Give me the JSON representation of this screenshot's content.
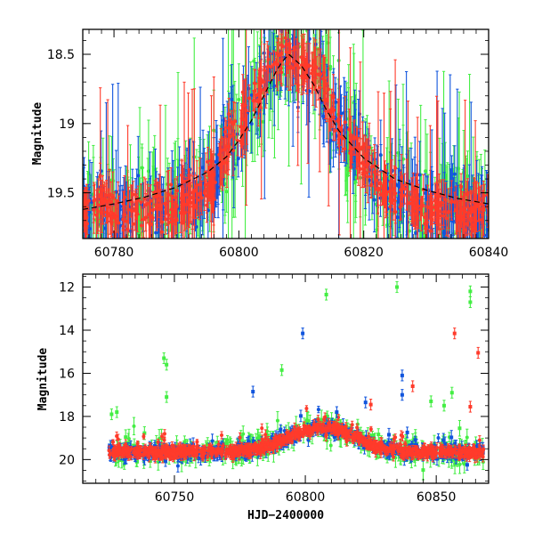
{
  "chart_data": [
    {
      "type": "scatter",
      "panel": "top",
      "title": "",
      "xlabel": "",
      "ylabel": "Magnitude",
      "xlim": [
        60775,
        60840
      ],
      "ylim": [
        19.83,
        18.32
      ],
      "y_inverted": true,
      "x_ticks": [
        "60780",
        "60800",
        "60820",
        "60840"
      ],
      "y_ticks": [
        "18.5",
        "19",
        "19.5"
      ],
      "grid": false,
      "legend": "none",
      "colors": {
        "green": "#44ee44",
        "blue": "#1155dd",
        "red": "#ff3b2b",
        "model": "#000000"
      },
      "series": [
        {
          "color": "green",
          "marker": "errorbar-point",
          "desc_points": "dense photometric points with large error bars (~0.1-0.5 mag) spanning full x range"
        },
        {
          "color": "blue",
          "marker": "errorbar-point",
          "desc_points": "dense photometric points spanning full x range"
        },
        {
          "color": "red",
          "marker": "errorbar-point",
          "desc_points": "dense photometric points spanning full x range"
        },
        {
          "color": "model",
          "style": "dashed-line"
        }
      ],
      "model_curve": {
        "x": [
          60775,
          60780,
          60785,
          60790,
          60795,
          60798,
          60800,
          60802,
          60804,
          60806,
          60807,
          60808,
          60810,
          60812,
          60814,
          60816,
          60820,
          60825,
          60830,
          60835,
          60840
        ],
        "y": [
          19.62,
          19.58,
          19.53,
          19.46,
          19.35,
          19.24,
          19.12,
          18.98,
          18.8,
          18.62,
          18.55,
          18.5,
          18.58,
          18.72,
          18.9,
          19.05,
          19.25,
          19.4,
          19.48,
          19.54,
          19.58
        ]
      }
    },
    {
      "type": "scatter",
      "panel": "bottom",
      "title": "",
      "xlabel": "HJD−2400000",
      "ylabel": "Magnitude",
      "xlim": [
        60715,
        60870
      ],
      "ylim": [
        21.1,
        11.4
      ],
      "y_inverted": true,
      "x_ticks": [
        "60750",
        "60800",
        "60850"
      ],
      "y_ticks": [
        "12",
        "14",
        "16",
        "18",
        "20"
      ],
      "grid": false,
      "legend": "none",
      "colors": {
        "green": "#44ee44",
        "blue": "#1155dd",
        "red": "#ff3b2b"
      },
      "baseline_mag": 19.65,
      "peak": {
        "x": 60808,
        "mag": 18.55
      },
      "outliers": [
        {
          "color": "green",
          "x": 60808,
          "y": 12.35
        },
        {
          "color": "green",
          "x": 60835,
          "y": 12.0
        },
        {
          "color": "green",
          "x": 60863,
          "y": 12.7
        },
        {
          "color": "green",
          "x": 60863,
          "y": 12.2
        },
        {
          "color": "green",
          "x": 60746,
          "y": 15.3
        },
        {
          "color": "green",
          "x": 60747,
          "y": 15.6
        },
        {
          "color": "green",
          "x": 60747,
          "y": 17.1
        },
        {
          "color": "green",
          "x": 60791,
          "y": 15.85
        },
        {
          "color": "green",
          "x": 60726,
          "y": 17.9
        },
        {
          "color": "green",
          "x": 60728,
          "y": 17.8
        },
        {
          "color": "green",
          "x": 60856,
          "y": 16.9
        },
        {
          "color": "green",
          "x": 60853,
          "y": 17.5
        },
        {
          "color": "green",
          "x": 60848,
          "y": 17.3
        },
        {
          "color": "blue",
          "x": 60799,
          "y": 14.15
        },
        {
          "color": "blue",
          "x": 60780,
          "y": 16.85
        },
        {
          "color": "blue",
          "x": 60837,
          "y": 16.1
        },
        {
          "color": "blue",
          "x": 60837,
          "y": 17.0
        },
        {
          "color": "blue",
          "x": 60823,
          "y": 17.35
        },
        {
          "color": "blue",
          "x": 60812,
          "y": 17.8
        },
        {
          "color": "red",
          "x": 60857,
          "y": 14.15
        },
        {
          "color": "red",
          "x": 60866,
          "y": 15.05
        },
        {
          "color": "red",
          "x": 60841,
          "y": 16.6
        },
        {
          "color": "red",
          "x": 60863,
          "y": 17.55
        },
        {
          "color": "red",
          "x": 60825,
          "y": 17.45
        }
      ]
    }
  ]
}
